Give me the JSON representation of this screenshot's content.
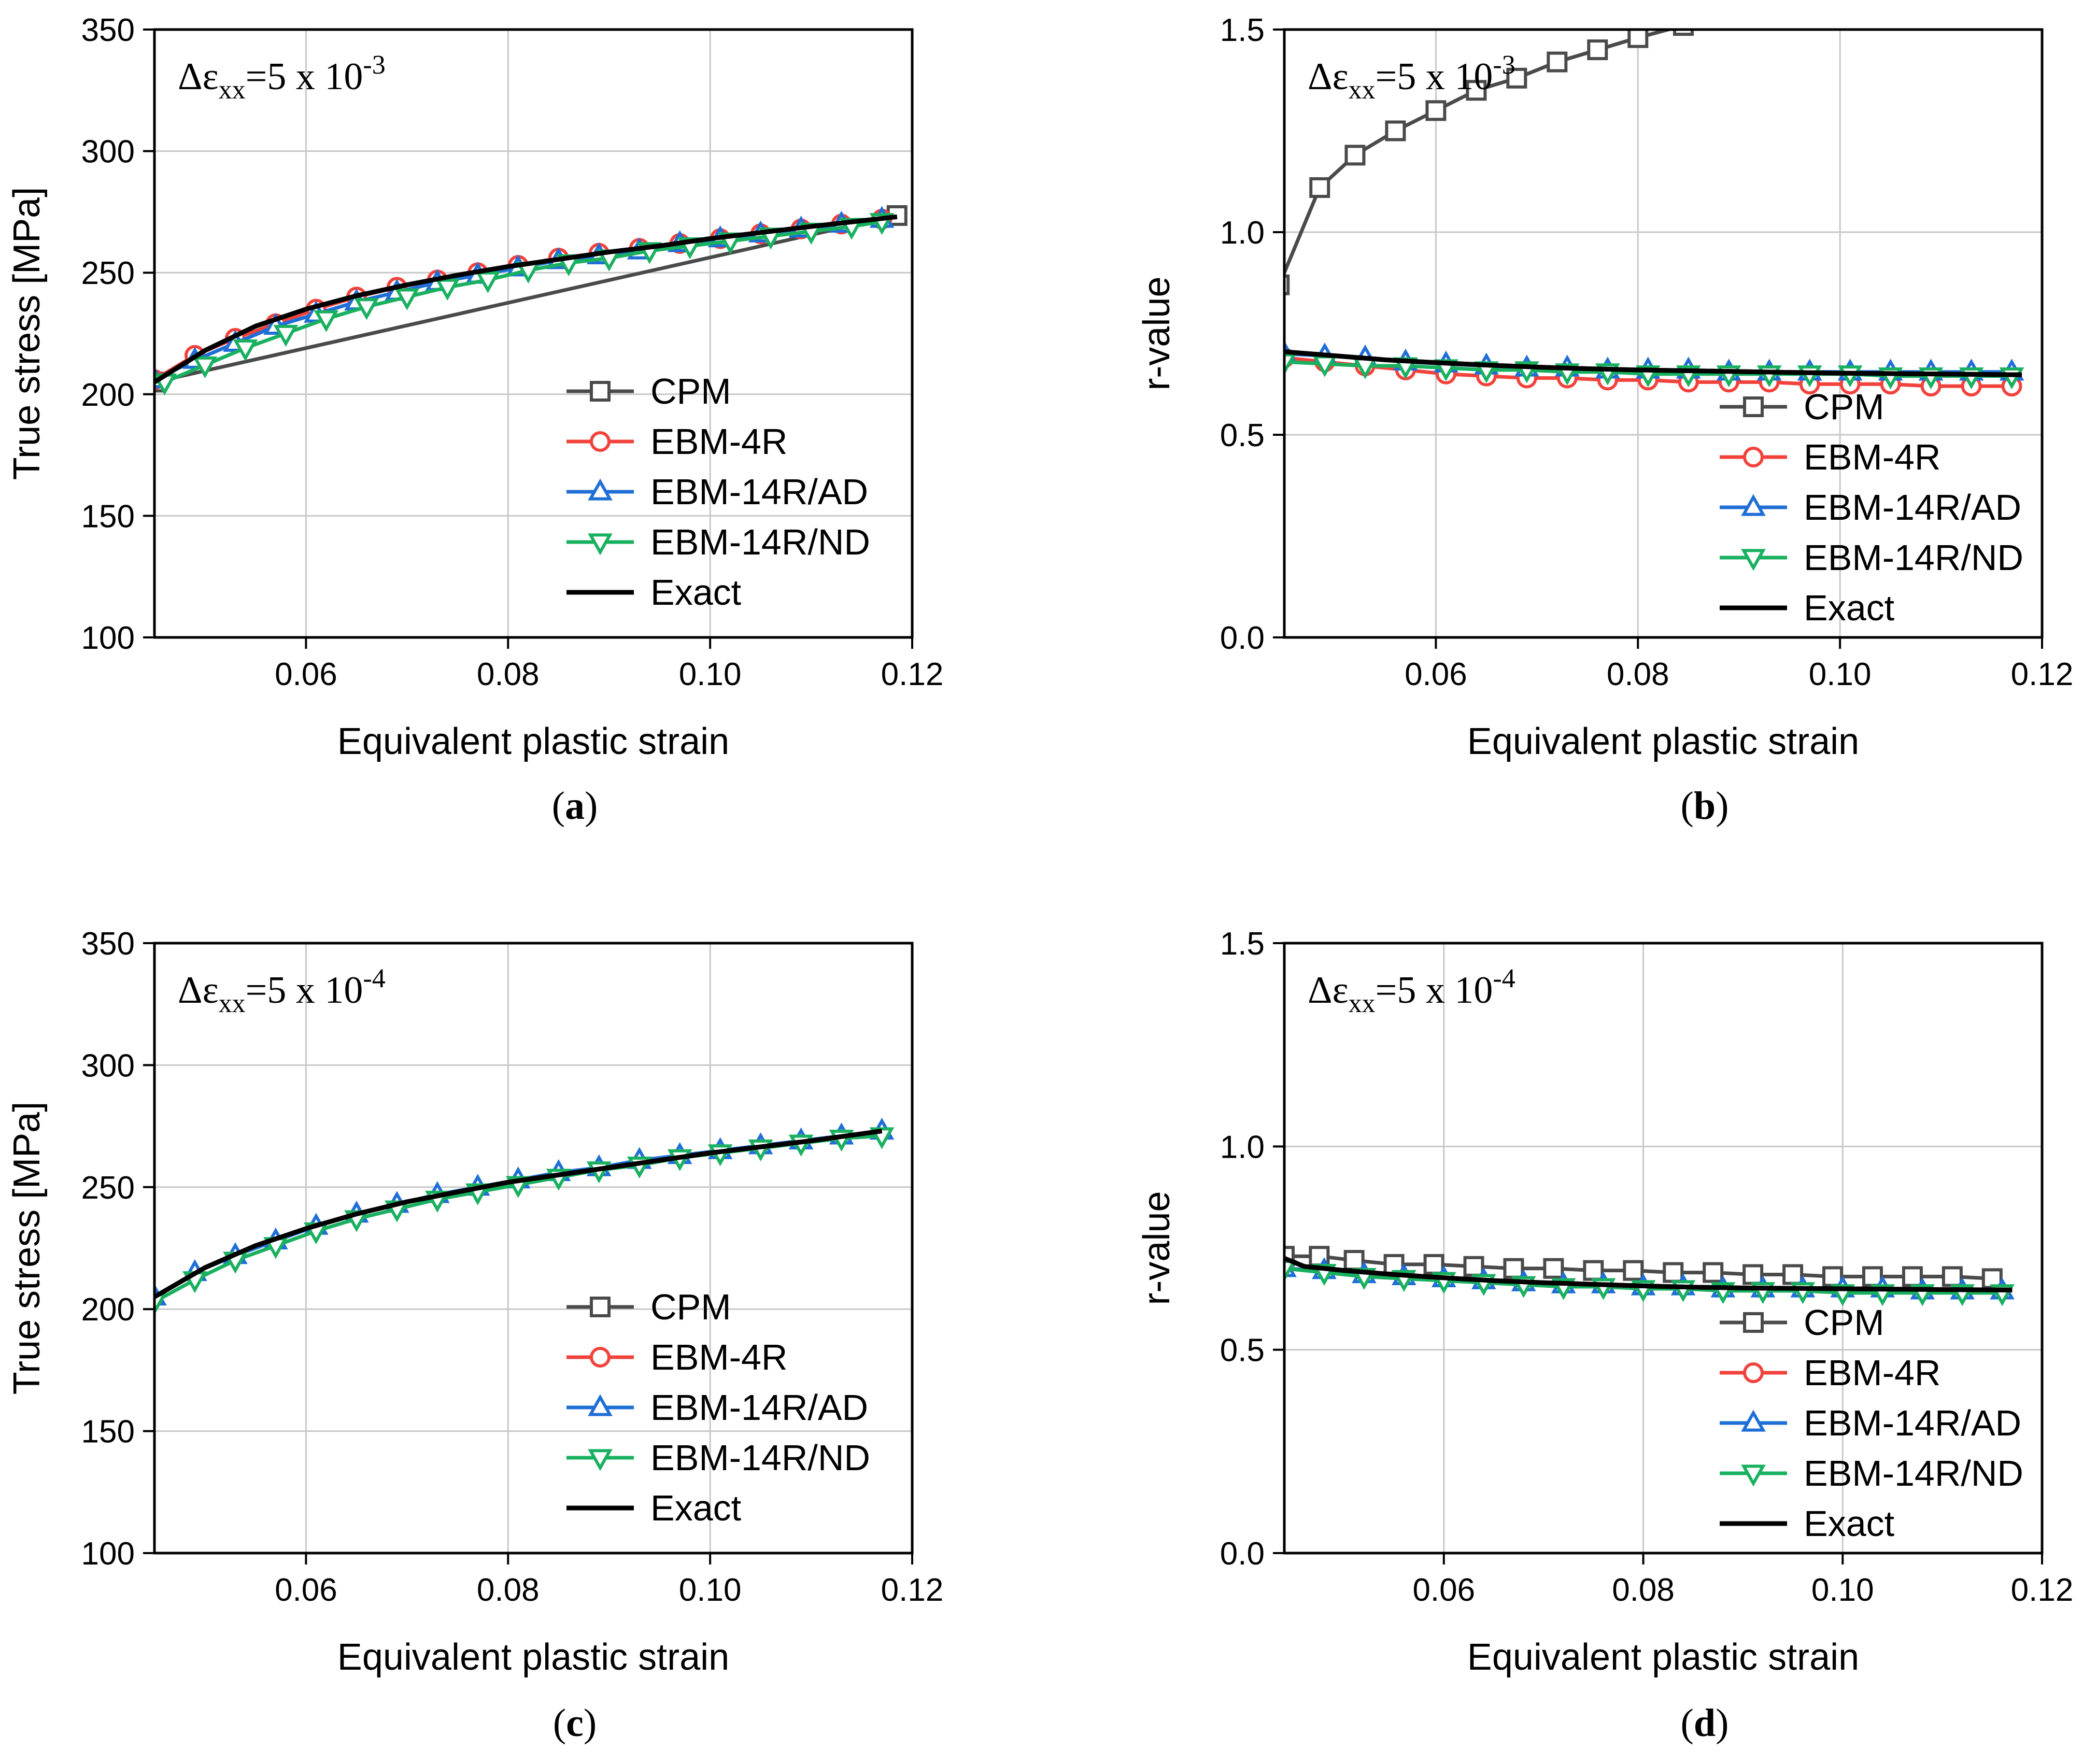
{
  "figure": {
    "colors": {
      "CPM": "#4a4a4a",
      "EBM-4R": "#f2423c",
      "EBM-14R/AD": "#1f6fd6",
      "EBM-14R/ND": "#19b060",
      "Exact": "#000000",
      "grid": "#c8c8c8"
    },
    "legend_labels": [
      "CPM",
      "EBM-4R",
      "EBM-14R/AD",
      "EBM-14R/ND",
      "Exact"
    ]
  },
  "chart_data": [
    {
      "type": "line",
      "panel_label": "a",
      "annotation": {
        "prefix": "Δε",
        "sub": "xx",
        "mid": "=5 x 10",
        "sup": "-3"
      },
      "xlabel": "Equivalent plastic strain",
      "ylabel": "True stress [MPa]",
      "xlim": [
        0.045,
        0.12
      ],
      "ylim": [
        100,
        350
      ],
      "xticks": [
        0.06,
        0.08,
        0.1,
        0.12
      ],
      "xtick_labels": [
        "0.06",
        "0.08",
        "0.10",
        "0.12"
      ],
      "yticks": [
        100,
        150,
        200,
        250,
        300,
        350
      ],
      "ytick_labels": [
        "100",
        "150",
        "200",
        "250",
        "300",
        "350"
      ],
      "legend_position": "lower-right",
      "series": [
        {
          "name": "CPM",
          "marker": "square",
          "x": [
            0.045,
            0.1185
          ],
          "y": [
            205,
            273.5
          ]
        },
        {
          "name": "EBM-4R",
          "marker": "circle",
          "x": [
            0.045,
            0.049,
            0.053,
            0.057,
            0.061,
            0.065,
            0.069,
            0.073,
            0.077,
            0.081,
            0.085,
            0.089,
            0.093,
            0.097,
            0.101,
            0.105,
            0.109,
            0.113,
            0.117
          ],
          "y": [
            206,
            216,
            223,
            229,
            235,
            240,
            244,
            247,
            250,
            253,
            256,
            258,
            260,
            262,
            264,
            266,
            268,
            270,
            272
          ]
        },
        {
          "name": "EBM-14R/AD",
          "marker": "triangle-up",
          "x": [
            0.045,
            0.049,
            0.053,
            0.057,
            0.061,
            0.065,
            0.069,
            0.073,
            0.077,
            0.081,
            0.085,
            0.089,
            0.093,
            0.097,
            0.101,
            0.105,
            0.109,
            0.113,
            0.117
          ],
          "y": [
            206,
            214,
            221,
            228,
            233,
            238,
            242,
            246,
            249,
            252,
            255,
            257,
            259,
            262,
            264,
            266,
            268,
            270,
            272
          ]
        },
        {
          "name": "EBM-14R/ND",
          "marker": "triangle-down",
          "x": [
            0.046,
            0.05,
            0.054,
            0.058,
            0.062,
            0.066,
            0.07,
            0.074,
            0.078,
            0.082,
            0.086,
            0.09,
            0.094,
            0.098,
            0.102,
            0.106,
            0.11,
            0.114,
            0.117
          ],
          "y": [
            205,
            212,
            219,
            225,
            231,
            236,
            240,
            244,
            247,
            251,
            254,
            256,
            259,
            261,
            263,
            265,
            267,
            269,
            271
          ]
        },
        {
          "name": "Exact",
          "marker": "none",
          "x": [
            0.045,
            0.05,
            0.055,
            0.06,
            0.065,
            0.07,
            0.075,
            0.08,
            0.085,
            0.09,
            0.095,
            0.1,
            0.105,
            0.11,
            0.1185
          ],
          "y": [
            205,
            218,
            228,
            235,
            240.5,
            245,
            249,
            252.5,
            255.5,
            258.5,
            261,
            264,
            266.5,
            269,
            273
          ]
        }
      ]
    },
    {
      "type": "line",
      "panel_label": "b",
      "annotation": {
        "prefix": "Δε",
        "sub": "xx",
        "mid": "=5 x 10",
        "sup": "-3"
      },
      "xlabel": "Equivalent plastic strain",
      "ylabel": "r-value",
      "xlim": [
        0.045,
        0.12
      ],
      "ylim": [
        0.0,
        1.5
      ],
      "xticks": [
        0.06,
        0.08,
        0.1,
        0.12
      ],
      "xtick_labels": [
        "0.06",
        "0.08",
        "0.10",
        "0.12"
      ],
      "yticks": [
        0.0,
        0.5,
        1.0,
        1.5
      ],
      "ytick_labels": [
        "0.0",
        "0.5",
        "1.0",
        "1.5"
      ],
      "legend_position": "lower-right",
      "series": [
        {
          "name": "CPM",
          "marker": "square",
          "x": [
            0.0445,
            0.0485,
            0.052,
            0.056,
            0.06,
            0.064,
            0.068,
            0.072,
            0.076,
            0.08,
            0.0845
          ],
          "y": [
            0.87,
            1.11,
            1.19,
            1.25,
            1.3,
            1.35,
            1.38,
            1.42,
            1.45,
            1.48,
            1.51
          ]
        },
        {
          "name": "EBM-4R",
          "marker": "circle",
          "x": [
            0.045,
            0.049,
            0.053,
            0.057,
            0.061,
            0.065,
            0.069,
            0.073,
            0.077,
            0.081,
            0.085,
            0.089,
            0.093,
            0.097,
            0.101,
            0.105,
            0.109,
            0.113,
            0.117
          ],
          "y": [
            0.69,
            0.68,
            0.67,
            0.66,
            0.65,
            0.645,
            0.64,
            0.64,
            0.635,
            0.635,
            0.63,
            0.63,
            0.63,
            0.625,
            0.625,
            0.625,
            0.62,
            0.62,
            0.62
          ]
        },
        {
          "name": "EBM-14R/AD",
          "marker": "triangle-up",
          "x": [
            0.045,
            0.049,
            0.053,
            0.057,
            0.061,
            0.065,
            0.069,
            0.073,
            0.077,
            0.081,
            0.085,
            0.089,
            0.093,
            0.097,
            0.101,
            0.105,
            0.109,
            0.113,
            0.117
          ],
          "y": [
            0.7,
            0.695,
            0.69,
            0.68,
            0.675,
            0.67,
            0.665,
            0.665,
            0.66,
            0.66,
            0.66,
            0.655,
            0.655,
            0.655,
            0.655,
            0.655,
            0.655,
            0.655,
            0.655
          ]
        },
        {
          "name": "EBM-14R/ND",
          "marker": "triangle-down",
          "x": [
            0.045,
            0.049,
            0.053,
            0.057,
            0.061,
            0.065,
            0.069,
            0.073,
            0.077,
            0.081,
            0.085,
            0.089,
            0.093,
            0.097,
            0.101,
            0.105,
            0.109,
            0.113,
            0.117
          ],
          "y": [
            0.68,
            0.675,
            0.67,
            0.67,
            0.665,
            0.66,
            0.66,
            0.655,
            0.655,
            0.65,
            0.65,
            0.65,
            0.65,
            0.65,
            0.65,
            0.645,
            0.645,
            0.645,
            0.645
          ]
        },
        {
          "name": "Exact",
          "marker": "none",
          "x": [
            0.045,
            0.05,
            0.055,
            0.06,
            0.065,
            0.07,
            0.075,
            0.08,
            0.085,
            0.09,
            0.095,
            0.1,
            0.105,
            0.11,
            0.118
          ],
          "y": [
            0.705,
            0.695,
            0.685,
            0.678,
            0.672,
            0.667,
            0.663,
            0.66,
            0.658,
            0.656,
            0.654,
            0.652,
            0.651,
            0.65,
            0.648
          ]
        }
      ]
    },
    {
      "type": "line",
      "panel_label": "c",
      "annotation": {
        "prefix": "Δε",
        "sub": "xx",
        "mid": "=5 x 10",
        "sup": "-4"
      },
      "xlabel": "Equivalent plastic strain",
      "ylabel": "True stress [MPa]",
      "xlim": [
        0.045,
        0.12
      ],
      "ylim": [
        100,
        350
      ],
      "xticks": [
        0.06,
        0.08,
        0.1,
        0.12
      ],
      "xtick_labels": [
        "0.06",
        "0.08",
        "0.10",
        "0.12"
      ],
      "yticks": [
        100,
        150,
        200,
        250,
        300,
        350
      ],
      "ytick_labels": [
        "100",
        "150",
        "200",
        "250",
        "300",
        "350"
      ],
      "legend_position": "lower-right",
      "series": [
        {
          "name": "CPM",
          "marker": "square",
          "x": [],
          "y": []
        },
        {
          "name": "EBM-4R",
          "marker": "circle",
          "x": [],
          "y": []
        },
        {
          "name": "EBM-14R/AD",
          "marker": "triangle-up",
          "x": [
            0.045,
            0.049,
            0.053,
            0.057,
            0.061,
            0.065,
            0.069,
            0.073,
            0.077,
            0.081,
            0.085,
            0.089,
            0.093,
            0.097,
            0.101,
            0.105,
            0.109,
            0.113,
            0.117
          ],
          "y": [
            205,
            215,
            222,
            228,
            234,
            239,
            243,
            247,
            250,
            253,
            256,
            258,
            261,
            263,
            265,
            267,
            269,
            271,
            273
          ]
        },
        {
          "name": "EBM-14R/ND",
          "marker": "triangle-down",
          "x": [
            0.045,
            0.049,
            0.053,
            0.057,
            0.061,
            0.065,
            0.069,
            0.073,
            0.077,
            0.081,
            0.085,
            0.089,
            0.093,
            0.097,
            0.101,
            0.105,
            0.109,
            0.113,
            0.117
          ],
          "y": [
            203,
            212,
            220,
            226,
            232,
            237,
            241,
            245,
            248,
            251,
            254,
            257,
            259,
            262,
            264,
            266,
            268,
            270,
            271
          ]
        },
        {
          "name": "Exact",
          "marker": "none",
          "x": [
            0.045,
            0.05,
            0.055,
            0.06,
            0.065,
            0.07,
            0.075,
            0.08,
            0.085,
            0.09,
            0.095,
            0.1,
            0.105,
            0.11,
            0.117
          ],
          "y": [
            205,
            217,
            226,
            233,
            239,
            244,
            248,
            252,
            255,
            258,
            261,
            264,
            266.5,
            269,
            273
          ]
        }
      ]
    },
    {
      "type": "line",
      "panel_label": "d",
      "annotation": {
        "prefix": "Δε",
        "sub": "xx",
        "mid": "=5 x 10",
        "sup": "-4"
      },
      "xlabel": "Equivalent plastic strain",
      "ylabel": "r-value",
      "xlim": [
        0.044,
        0.12
      ],
      "ylim": [
        0.0,
        1.5
      ],
      "xticks": [
        0.06,
        0.08,
        0.1,
        0.12
      ],
      "xtick_labels": [
        "0.06",
        "0.08",
        "0.10",
        "0.12"
      ],
      "yticks": [
        0.0,
        0.5,
        1.0,
        1.5
      ],
      "ytick_labels": [
        "0.0",
        "0.5",
        "1.0",
        "1.5"
      ],
      "legend_position": "lower-right",
      "series": [
        {
          "name": "CPM",
          "marker": "square",
          "x": [
            0.044,
            0.0475,
            0.051,
            0.055,
            0.059,
            0.063,
            0.067,
            0.071,
            0.075,
            0.079,
            0.083,
            0.087,
            0.091,
            0.095,
            0.099,
            0.103,
            0.107,
            0.111,
            0.115
          ],
          "y": [
            0.73,
            0.73,
            0.72,
            0.71,
            0.71,
            0.705,
            0.7,
            0.7,
            0.695,
            0.695,
            0.69,
            0.69,
            0.685,
            0.685,
            0.68,
            0.68,
            0.68,
            0.68,
            0.675
          ]
        },
        {
          "name": "EBM-4R",
          "marker": "circle",
          "x": [],
          "y": []
        },
        {
          "name": "EBM-14R/AD",
          "marker": "triangle-up",
          "x": [
            0.044,
            0.048,
            0.052,
            0.056,
            0.06,
            0.064,
            0.068,
            0.072,
            0.076,
            0.08,
            0.084,
            0.088,
            0.092,
            0.096,
            0.1,
            0.104,
            0.108,
            0.112,
            0.116
          ],
          "y": [
            0.7,
            0.695,
            0.685,
            0.68,
            0.675,
            0.67,
            0.665,
            0.66,
            0.66,
            0.655,
            0.655,
            0.65,
            0.65,
            0.65,
            0.65,
            0.65,
            0.645,
            0.645,
            0.645
          ]
        },
        {
          "name": "EBM-14R/ND",
          "marker": "triangle-down",
          "x": [
            0.044,
            0.048,
            0.052,
            0.056,
            0.06,
            0.064,
            0.068,
            0.072,
            0.076,
            0.08,
            0.084,
            0.088,
            0.092,
            0.096,
            0.1,
            0.104,
            0.108,
            0.112,
            0.116
          ],
          "y": [
            0.7,
            0.69,
            0.68,
            0.675,
            0.67,
            0.665,
            0.66,
            0.655,
            0.655,
            0.65,
            0.65,
            0.645,
            0.645,
            0.645,
            0.64,
            0.64,
            0.64,
            0.64,
            0.64
          ]
        },
        {
          "name": "Exact",
          "marker": "none",
          "x": [
            0.044,
            0.046,
            0.05,
            0.055,
            0.06,
            0.065,
            0.07,
            0.075,
            0.08,
            0.085,
            0.09,
            0.095,
            0.1,
            0.105,
            0.11,
            0.117
          ],
          "y": [
            0.725,
            0.705,
            0.695,
            0.685,
            0.677,
            0.67,
            0.665,
            0.661,
            0.657,
            0.654,
            0.652,
            0.651,
            0.65,
            0.649,
            0.648,
            0.647
          ]
        }
      ]
    }
  ]
}
